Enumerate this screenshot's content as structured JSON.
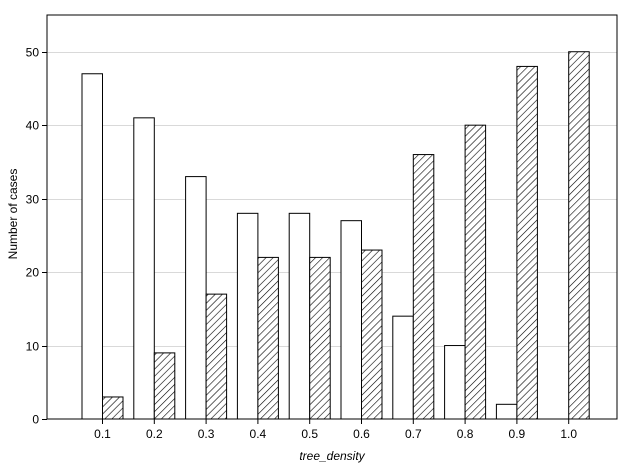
{
  "chart_data": {
    "type": "bar",
    "xlabel": "tree_density",
    "ylabel": "Number of cases",
    "categories": [
      "0.1",
      "0.2",
      "0.3",
      "0.4",
      "0.5",
      "0.6",
      "0.7",
      "0.8",
      "0.9",
      "1.0"
    ],
    "series": [
      {
        "fill": "white",
        "values": [
          47,
          41,
          33,
          28,
          28,
          27,
          14,
          10,
          2,
          0
        ]
      },
      {
        "fill": "hatched",
        "values": [
          3,
          9,
          17,
          22,
          22,
          23,
          36,
          40,
          48,
          50
        ]
      }
    ],
    "ylim": [
      0,
      55
    ],
    "yticks": [
      0,
      10,
      20,
      30,
      40,
      50
    ],
    "grid": true,
    "legend": "none"
  }
}
